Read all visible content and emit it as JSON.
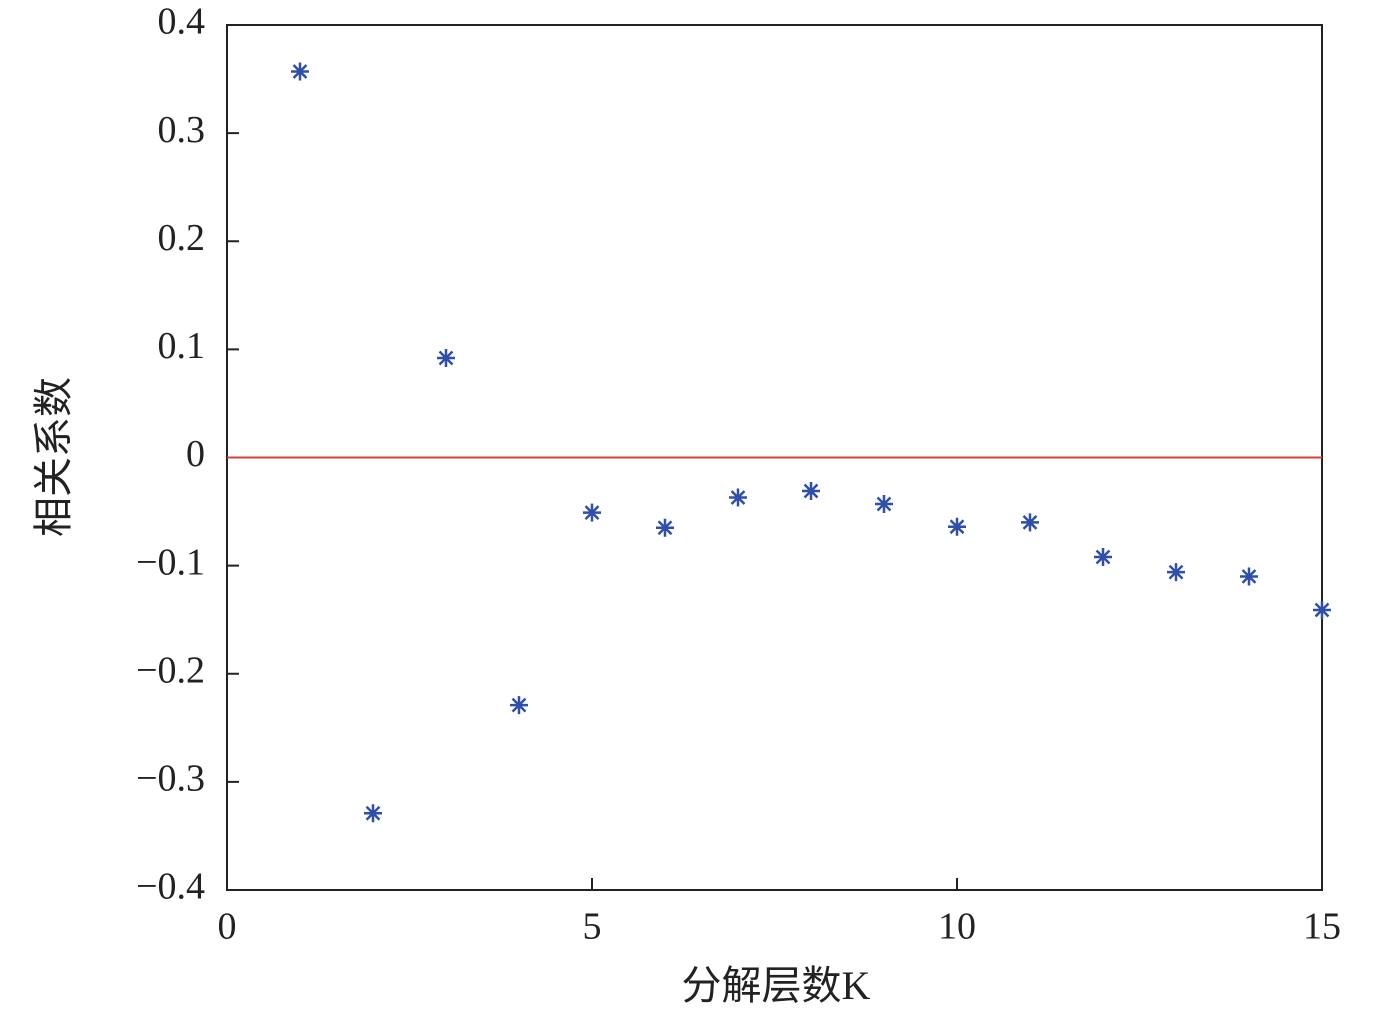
{
  "chart_data": {
    "type": "scatter",
    "x_label": "分解层数K",
    "y_label": "相关系数",
    "x": [
      1,
      2,
      3,
      4,
      5,
      6,
      7,
      8,
      9,
      10,
      11,
      12,
      13,
      14,
      15
    ],
    "series": [
      {
        "color": "#2f4fa8",
        "marker": "asterisk",
        "values": [
          0.357,
          -0.329,
          0.092,
          -0.229,
          -0.051,
          -0.065,
          -0.037,
          -0.031,
          -0.043,
          -0.064,
          -0.06,
          -0.092,
          -0.106,
          -0.11,
          -0.141
        ]
      }
    ],
    "xlim": [
      0,
      15
    ],
    "xticks": [
      0,
      5,
      10,
      15
    ],
    "ylim": [
      -0.4,
      0.4
    ],
    "yticks": [
      {
        "value": -0.4,
        "label": "−0.4"
      },
      {
        "value": -0.3,
        "label": "−0.3"
      },
      {
        "value": -0.2,
        "label": "−0.2"
      },
      {
        "value": -0.1,
        "label": "−0.1"
      },
      0,
      0.1,
      0.2,
      0.3,
      0.4
    ],
    "reference_line": {
      "value": 0,
      "color": "#d9403a"
    },
    "grid": false
  }
}
